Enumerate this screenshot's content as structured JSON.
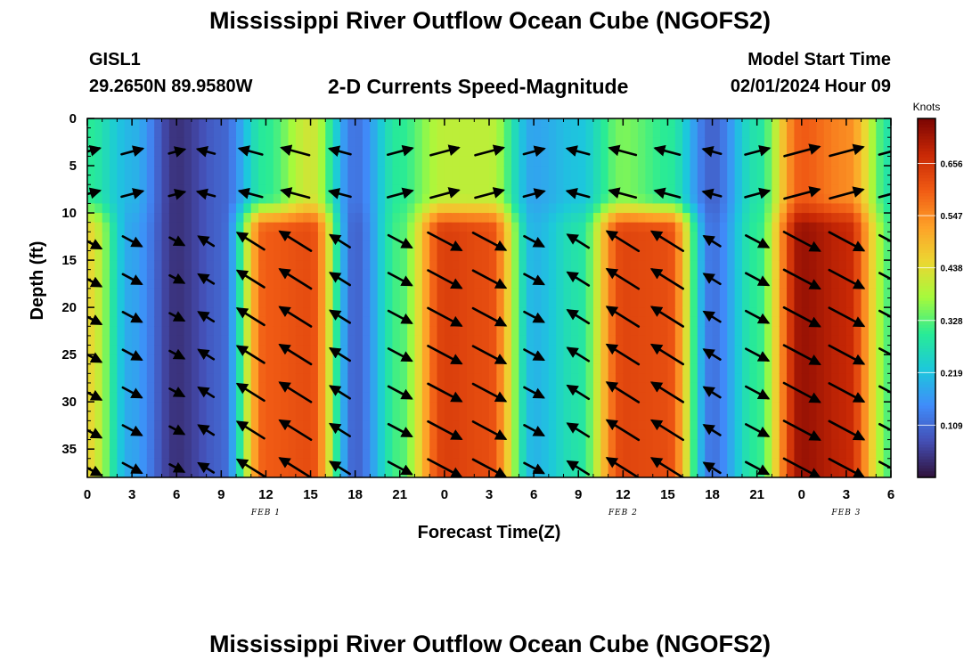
{
  "header": {
    "title": "Mississippi River Outflow Ocean Cube (NGOFS2)",
    "station_id": "GISL1",
    "station_coords": "29.2650N  89.9580W",
    "subtitle": "2-D Currents Speed-Magnitude",
    "model_start_label": "Model Start Time",
    "model_start_value": "02/01/2024 Hour 09"
  },
  "footer": {
    "title": "Mississippi River Outflow Ocean Cube (NGOFS2)"
  },
  "chart_data": {
    "type": "heatmap",
    "xlabel": "Forecast Time(Z)",
    "ylabel": "Depth (ft)",
    "x_range_hours": [
      0,
      54
    ],
    "xticks": [
      "0",
      "3",
      "6",
      "9",
      "12",
      "15",
      "18",
      "21",
      "0",
      "3",
      "6",
      "9",
      "12",
      "15",
      "18",
      "21",
      "0",
      "3",
      "6"
    ],
    "day_labels": [
      {
        "label": "FEB 1",
        "hour": 12
      },
      {
        "label": "FEB 2",
        "hour": 36
      },
      {
        "label": "FEB 3",
        "hour": 51
      }
    ],
    "ylim": [
      0,
      38
    ],
    "yticks": [
      "0",
      "5",
      "10",
      "15",
      "20",
      "25",
      "30",
      "35"
    ],
    "ytick_values": [
      0,
      5,
      10,
      15,
      20,
      25,
      30,
      35
    ],
    "colorbar": {
      "title": "Knots",
      "range": [
        0,
        0.75
      ],
      "tick_labels": [
        "0.656",
        "0.547",
        "0.438",
        "0.328",
        "0.219",
        "0.109"
      ],
      "tick_values": [
        0.656,
        0.547,
        0.438,
        0.328,
        0.219,
        0.109
      ]
    },
    "speed_grid": {
      "columns_hours": [
        0,
        3,
        6,
        9,
        12,
        15,
        18,
        21,
        24,
        27,
        30,
        33,
        36,
        39,
        42,
        45,
        48,
        51,
        54
      ],
      "upper_layer_0_8ft": [
        0.3,
        0.2,
        0.04,
        0.1,
        0.3,
        0.42,
        0.12,
        0.3,
        0.4,
        0.4,
        0.18,
        0.22,
        0.35,
        0.3,
        0.1,
        0.28,
        0.6,
        0.55,
        0.28
      ],
      "lower_layer_10_38ft": [
        0.45,
        0.18,
        0.04,
        0.1,
        0.6,
        0.62,
        0.1,
        0.32,
        0.64,
        0.62,
        0.2,
        0.28,
        0.63,
        0.62,
        0.12,
        0.3,
        0.72,
        0.68,
        0.32
      ]
    },
    "vector_layers_ft": [
      3.5,
      8,
      13,
      17,
      21,
      25,
      29,
      33,
      37
    ],
    "vector_times_hours": [
      0,
      3,
      6,
      8,
      11,
      14,
      17,
      21,
      24,
      27,
      30,
      33,
      36,
      39,
      42,
      45,
      48,
      51,
      54
    ]
  }
}
